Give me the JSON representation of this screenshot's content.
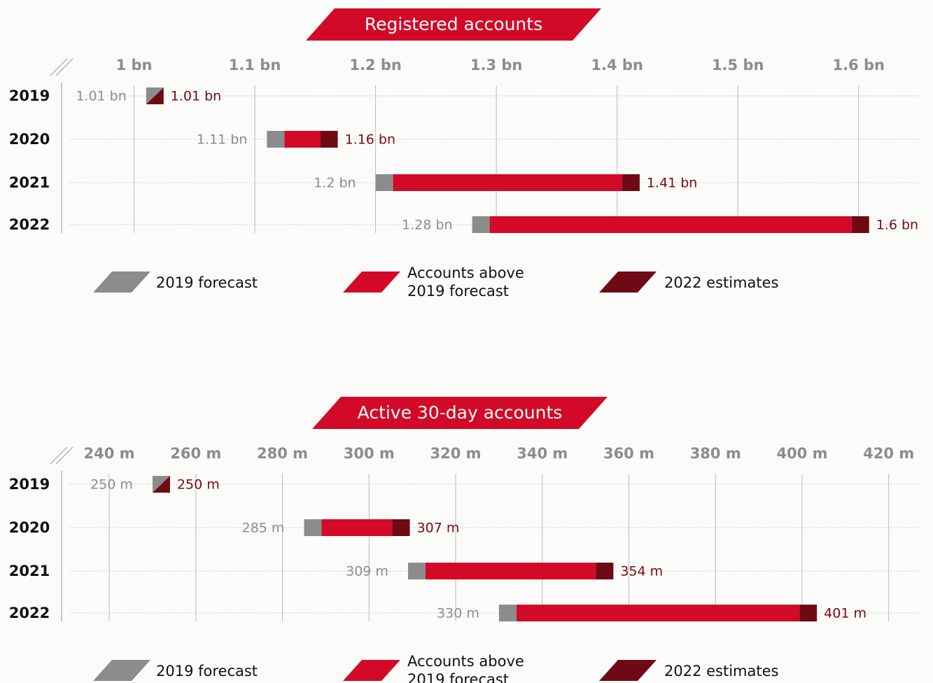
{
  "chart_data": [
    {
      "type": "bar",
      "title": "Registered accounts",
      "categories": [
        "2019",
        "2020",
        "2021",
        "2022"
      ],
      "series": [
        {
          "name": "2019 forecast",
          "color": "#8c8c8c",
          "values": [
            1.01,
            1.11,
            1.2,
            1.28
          ],
          "value_labels": [
            "1.01 bn",
            "1.11 bn",
            "1.2 bn",
            "1.28 bn"
          ]
        },
        {
          "name": "Accounts above 2019 forecast",
          "color": "#d20a28"
        },
        {
          "name": "2022 estimates",
          "color": "#6e0a14",
          "values": [
            1.01,
            1.16,
            1.41,
            1.6
          ],
          "value_labels": [
            "1.01 bn",
            "1.16 bn",
            "1.41 bn",
            "1.6 bn"
          ]
        }
      ],
      "xlim": [
        0.94,
        1.65
      ],
      "xticks": [
        {
          "value": 1,
          "label": "1 bn"
        },
        {
          "value": 1.1,
          "label": "1.1 bn"
        },
        {
          "value": 1.2,
          "label": "1.2 bn"
        },
        {
          "value": 1.3,
          "label": "1.3 bn"
        },
        {
          "value": 1.4,
          "label": "1.4 bn"
        },
        {
          "value": 1.5,
          "label": "1.5 bn"
        },
        {
          "value": 1.6,
          "label": "1.6 bn"
        }
      ],
      "grid": true
    },
    {
      "type": "bar",
      "title": "Active 30-day accounts",
      "categories": [
        "2019",
        "2020",
        "2021",
        "2022"
      ],
      "series": [
        {
          "name": "2019 forecast",
          "color": "#8c8c8c",
          "values": [
            250,
            285,
            309,
            330
          ],
          "value_labels": [
            "250 m",
            "285 m",
            "309 m",
            "330 m"
          ]
        },
        {
          "name": "Accounts above 2019 forecast",
          "color": "#d20a28"
        },
        {
          "name": "2022 estimates",
          "color": "#6e0a14",
          "values": [
            250,
            307,
            354,
            401
          ],
          "value_labels": [
            "250 m",
            "307 m",
            "354 m",
            "401 m"
          ]
        }
      ],
      "xlim": [
        229,
        427
      ],
      "xticks": [
        {
          "value": 240,
          "label": "240 m"
        },
        {
          "value": 260,
          "label": "260 m"
        },
        {
          "value": 280,
          "label": "280 m"
        },
        {
          "value": 300,
          "label": "300 m"
        },
        {
          "value": 320,
          "label": "320 m"
        },
        {
          "value": 340,
          "label": "340 m"
        },
        {
          "value": 360,
          "label": "360 m"
        },
        {
          "value": 380,
          "label": "380 m"
        },
        {
          "value": 400,
          "label": "400 m"
        },
        {
          "value": 420,
          "label": "420 m"
        }
      ],
      "grid": true
    }
  ]
}
